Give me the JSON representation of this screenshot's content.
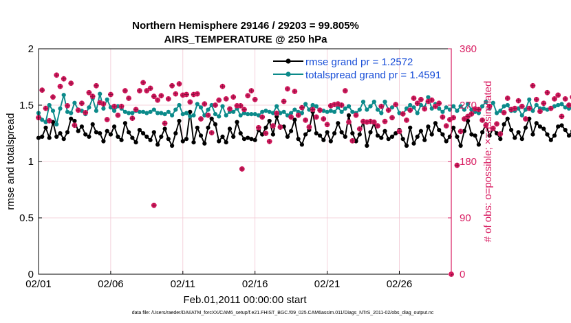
{
  "chart_data": {
    "type": "line",
    "title_line1": "Northern Hemisphere 29146 / 29203 = 99.805%",
    "title_line2": "AIRS_TEMPERATURE @ 250 hPa",
    "xlabel": "Feb.01,2011 00:00:00 start",
    "ylabel_left": "rmse and totalspread",
    "ylabel_right": "# of obs: o=possible; ×=assimilated",
    "xlim": [
      0,
      28.6
    ],
    "ylim_left": [
      0,
      2
    ],
    "ylim_right": [
      0,
      360
    ],
    "x_tick_values": [
      0,
      5,
      10,
      15,
      20,
      25
    ],
    "x_tick_labels": [
      "02/01",
      "02/06",
      "02/11",
      "02/16",
      "02/21",
      "02/26"
    ],
    "y_left_ticks": [
      "0",
      "0.5",
      "1",
      "1.5",
      "2"
    ],
    "y_right_ticks": [
      "0",
      "90",
      "180",
      "270",
      "360"
    ],
    "x_step_days": 0.25,
    "series": [
      {
        "name": "rmse grand pr = 1.2572",
        "color": "#000000",
        "marker": "o",
        "values": [
          1.21,
          1.22,
          1.3,
          1.21,
          1.35,
          1.22,
          1.25,
          1.2,
          1.26,
          1.38,
          1.36,
          1.27,
          1.31,
          1.24,
          1.22,
          1.33,
          1.26,
          1.25,
          1.18,
          1.27,
          1.24,
          1.31,
          1.22,
          1.19,
          1.34,
          1.26,
          1.21,
          1.17,
          1.28,
          1.25,
          1.22,
          1.19,
          1.26,
          1.15,
          1.22,
          1.29,
          1.2,
          1.14,
          1.25,
          1.36,
          1.18,
          1.2,
          1.44,
          1.17,
          1.3,
          1.23,
          1.16,
          1.3,
          1.38,
          1.33,
          1.18,
          1.22,
          1.17,
          1.29,
          1.22,
          1.35,
          1.25,
          1.2,
          1.21,
          1.2,
          1.19,
          1.28,
          1.24,
          1.3,
          1.36,
          1.24,
          1.4,
          1.3,
          1.31,
          1.22,
          1.27,
          1.37,
          1.2,
          1.15,
          1.24,
          1.28,
          1.44,
          1.25,
          1.23,
          1.19,
          1.26,
          1.18,
          1.25,
          1.34,
          1.26,
          1.22,
          1.41,
          1.25,
          1.18,
          1.24,
          1.36,
          1.14,
          1.26,
          1.34,
          1.23,
          1.21,
          1.27,
          1.2,
          1.22,
          1.25,
          1.28,
          1.2,
          1.14,
          1.3,
          1.16,
          1.22,
          1.27,
          1.19,
          1.31,
          1.24,
          1.34,
          1.28,
          1.24,
          1.18,
          1.22,
          1.3,
          1.22,
          1.14,
          1.27,
          1.36,
          1.24,
          1.23,
          1.15,
          1.26,
          1.33,
          1.23,
          1.29,
          1.25,
          1.2,
          1.33,
          1.38,
          1.28,
          1.21,
          1.26,
          1.2,
          1.3,
          1.38,
          1.24,
          1.34,
          1.31,
          1.29,
          1.24,
          1.19,
          1.23,
          1.31,
          1.32,
          1.28,
          1.23,
          1.27,
          1.22,
          1.25,
          1.19,
          1.3,
          1.32,
          1.17,
          1.22,
          1.14,
          1.25,
          1.23,
          1.15,
          1.23,
          1.27,
          1.23,
          1.2,
          1.22,
          1.17,
          1.16,
          1.22,
          1.3,
          1.38,
          1.35,
          1.23,
          1.19,
          1.25,
          1.39,
          1.41,
          1.24,
          1.21,
          1.31,
          1.28,
          1.22,
          1.27,
          1.35,
          1.24,
          1.15,
          1.24,
          1.31,
          1.12,
          1.13,
          1.27,
          1.33,
          1.26,
          1.19,
          1.24,
          1.31,
          1.22,
          1.26,
          1.27,
          1.2,
          1.13,
          1.28,
          1.13,
          1.3,
          1.22,
          1.14,
          1.21,
          1.28,
          1.3,
          1.22,
          1.2,
          1.38,
          1.27,
          1.32,
          1.22,
          1.12,
          1.29,
          1.14,
          1.28,
          1.19,
          1.26,
          1.13
        ]
      },
      {
        "name": "totalspread grand pr = 1.4591",
        "color": "#0b8a8a",
        "marker": "o",
        "values": [
          1.43,
          1.37,
          1.35,
          1.5,
          1.45,
          1.33,
          1.47,
          1.59,
          1.44,
          1.43,
          1.52,
          1.46,
          1.45,
          1.42,
          1.48,
          1.56,
          1.45,
          1.6,
          1.47,
          1.55,
          1.48,
          1.45,
          1.49,
          1.47,
          1.44,
          1.43,
          1.43,
          1.45,
          1.44,
          1.44,
          1.43,
          1.44,
          1.46,
          1.43,
          1.43,
          1.42,
          1.44,
          1.41,
          1.46,
          1.5,
          1.42,
          1.43,
          1.4,
          1.41,
          1.51,
          1.48,
          1.41,
          1.46,
          1.5,
          1.42,
          1.4,
          1.49,
          1.41,
          1.44,
          1.44,
          1.47,
          1.41,
          1.43,
          1.42,
          1.42,
          1.42,
          1.41,
          1.44,
          1.45,
          1.44,
          1.43,
          1.49,
          1.43,
          1.44,
          1.41,
          1.43,
          1.46,
          1.44,
          1.43,
          1.51,
          1.46,
          1.5,
          1.49,
          1.45,
          1.45,
          1.44,
          1.45,
          1.44,
          1.48,
          1.44,
          1.47,
          1.49,
          1.44,
          1.43,
          1.46,
          1.53,
          1.46,
          1.49,
          1.53,
          1.46,
          1.43,
          1.53,
          1.46,
          1.48,
          1.51,
          1.43,
          1.42,
          1.47,
          1.5,
          1.48,
          1.43,
          1.5,
          1.48,
          1.57,
          1.47,
          1.51,
          1.47,
          1.44,
          1.48,
          1.46,
          1.49,
          1.45,
          1.49,
          1.46,
          1.51,
          1.46,
          1.44,
          1.43,
          1.49,
          1.53,
          1.47,
          1.52,
          1.43,
          1.45,
          1.49,
          1.5,
          1.45,
          1.45,
          1.47,
          1.41,
          1.46,
          1.55,
          1.45,
          1.5,
          1.47,
          1.47,
          1.46,
          1.47,
          1.49,
          1.5,
          1.51,
          1.48,
          1.47,
          1.49,
          1.45,
          1.48,
          1.47,
          1.44,
          1.49,
          1.45,
          1.46,
          1.47,
          1.48,
          1.41,
          1.43,
          1.44,
          1.43,
          1.44,
          1.46,
          1.44,
          1.42,
          1.42,
          1.43,
          1.41,
          1.48,
          1.49,
          1.47,
          1.42,
          1.5,
          1.49,
          1.53,
          1.41,
          1.44,
          1.43,
          1.48,
          1.47,
          1.5,
          1.46,
          1.49,
          1.41,
          1.44,
          1.47,
          1.5,
          1.44,
          1.42,
          1.47,
          1.54,
          1.47,
          1.48,
          1.45,
          1.49,
          1.44,
          1.46,
          1.46,
          1.5,
          1.43,
          1.47,
          1.45,
          1.47,
          1.46,
          1.55,
          1.46,
          1.49,
          1.45,
          1.48,
          1.52,
          1.48,
          1.44,
          1.49,
          1.5,
          1.46,
          1.48,
          1.46,
          1.46,
          1.44
        ]
      }
    ],
    "obs_possible": {
      "name": "o=possible",
      "color": "#d81b60",
      "values": [
        250,
        294,
        265,
        245,
        283,
        318,
        300,
        312,
        269,
        305,
        238,
        262,
        273,
        258,
        290,
        284,
        301,
        274,
        272,
        247,
        287,
        268,
        254,
        268,
        293,
        281,
        249,
        263,
        293,
        306,
        293,
        297,
        284,
        278,
        285,
        241,
        280,
        301,
        288,
        304,
        286,
        287,
        275,
        287,
        288,
        248,
        272,
        254,
        226,
        270,
        278,
        300,
        280,
        264,
        283,
        269,
        269,
        263,
        285,
        293,
        279,
        234,
        251,
        225,
        212,
        237,
        257,
        235,
        276,
        296,
        251,
        292,
        254,
        266,
        246,
        235,
        263,
        251,
        262,
        248,
        239,
        269,
        271,
        272,
        270,
        293,
        243,
        213,
        254,
        232,
        244,
        243,
        244,
        243,
        237,
        268,
        244,
        262,
        250,
        271,
        228,
        256,
        246,
        262,
        281,
        273,
        279,
        264,
        276,
        278,
        268,
        273,
        251,
        237,
        247,
        250,
        174,
        228,
        248,
        252,
        256,
        264,
        263,
        246,
        238,
        268,
        233,
        240,
        224,
        258,
        281,
        263,
        265,
        277,
        268,
        248,
        265,
        301,
        279,
        260,
        273,
        290,
        265,
        280,
        286,
        252,
        280,
        270,
        283,
        281,
        285,
        261,
        265,
        235,
        248,
        242,
        263,
        257,
        253,
        228,
        248,
        246,
        258,
        270,
        264,
        262,
        247,
        261,
        268,
        262,
        263,
        233,
        286,
        286,
        285,
        284,
        270,
        272,
        296,
        303,
        298,
        304,
        296,
        290,
        273,
        293,
        273,
        275,
        265,
        268,
        246,
        261,
        253,
        248,
        270,
        262,
        256,
        278,
        258,
        254,
        259,
        260,
        268,
        268,
        263,
        273,
        261,
        274,
        274,
        278,
        268,
        262,
        288,
        263,
        281,
        266,
        293,
        268,
        256,
        279,
        271,
        298,
        272,
        261,
        264,
        260
      ]
    },
    "obs_possible_extra": [
      {
        "x": 14.1,
        "y": 168
      },
      {
        "x": 8.0,
        "y": 110
      },
      {
        "x": 28.6,
        "y": 0
      }
    ],
    "legend": {
      "location": "top-right",
      "items": [
        "rmse grand pr = 1.2572",
        "totalspread grand pr = 1.4591"
      ]
    },
    "footnote": "data file: /Users/raeder/DAI/ATM_forcXX/CAM6_setup/f.e21.FHIST_BGC.f09_025.CAM6assim.011/Diags_NTrS_2011-02/obs_diag_output.nc",
    "grid": true
  },
  "colors": {
    "axis": "#000000",
    "right_axis": "#d81b60",
    "grid": "#f2c7d3"
  }
}
